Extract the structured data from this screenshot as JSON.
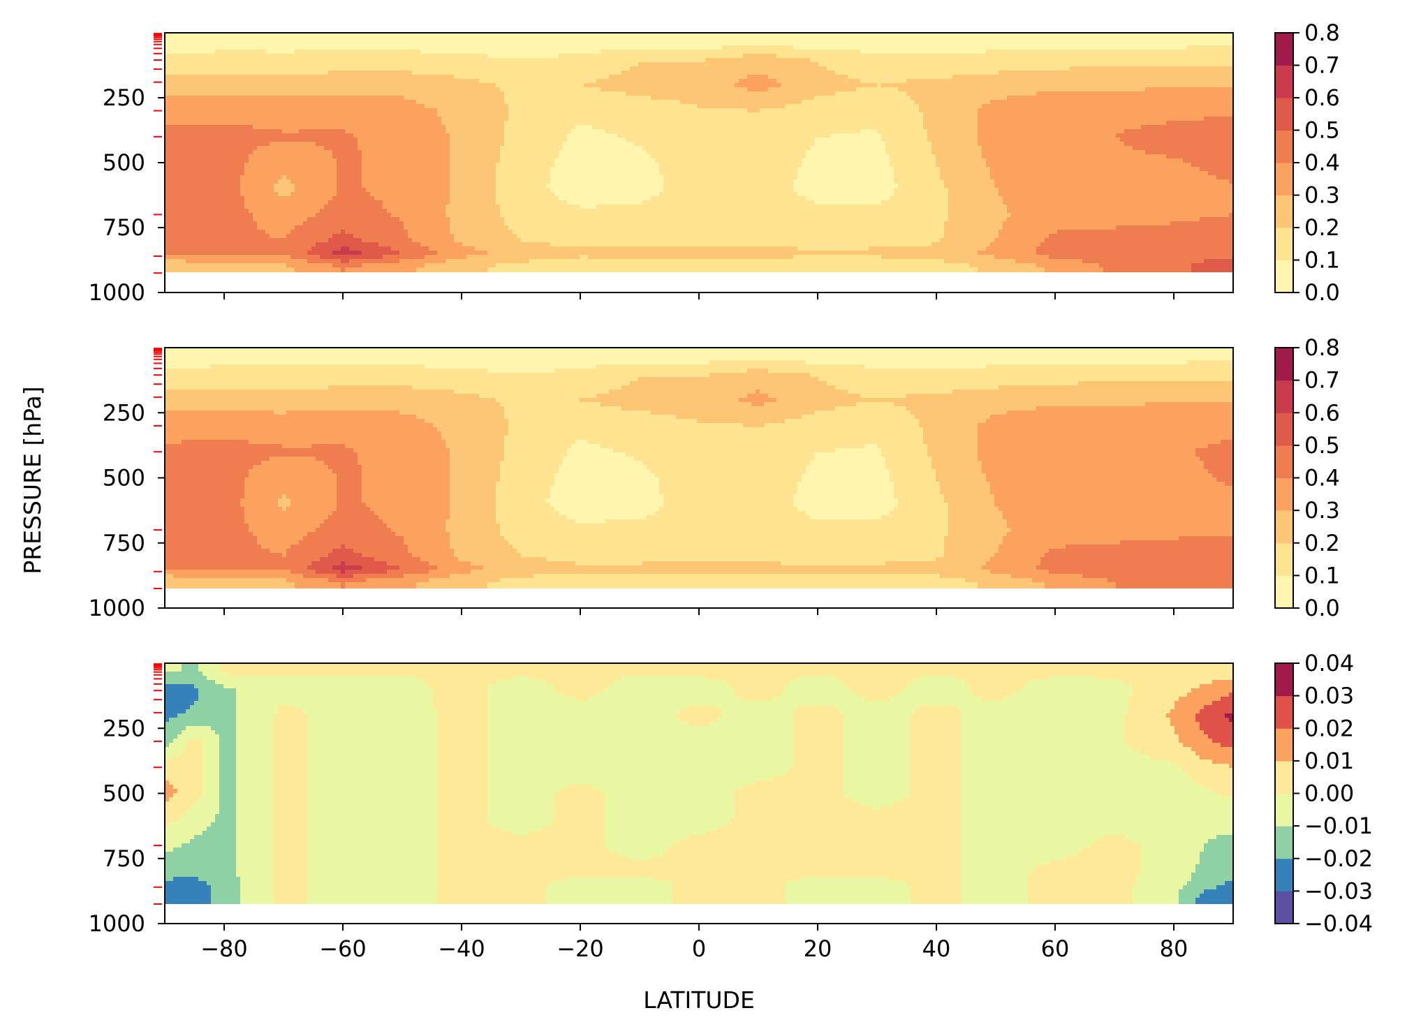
{
  "figure": {
    "ylabel": "PRESSURE [hPa]",
    "xlabel": "LATITUDE"
  },
  "chart_data": [
    {
      "type": "heatmap",
      "panel": "top",
      "x_range": [
        -90,
        90
      ],
      "y_range": [
        1000,
        0
      ],
      "y_inverted": true,
      "x_ticks": [
        -80,
        -60,
        -40,
        -20,
        0,
        20,
        40,
        60,
        80
      ],
      "x_tick_labels_shown": false,
      "y_ticks": [
        250,
        500,
        750,
        1000
      ],
      "y_tick_labels": [
        "250",
        "500",
        "750",
        "1000"
      ],
      "model_level_markers_hpa": [
        3,
        7,
        12,
        18,
        25,
        34,
        45,
        60,
        80,
        105,
        140,
        190,
        300,
        400,
        700,
        860,
        925
      ],
      "colorbar": {
        "levels": [
          0.0,
          0.1,
          0.2,
          0.3,
          0.4,
          0.5,
          0.6,
          0.7,
          0.8
        ],
        "tick_labels": [
          "0.0",
          "0.1",
          "0.2",
          "0.3",
          "0.4",
          "0.5",
          "0.6",
          "0.7",
          "0.8"
        ],
        "colors": [
          "#fff5ac",
          "#fee391",
          "#fdc674",
          "#fba35e",
          "#f07d4f",
          "#e05a4a",
          "#c93b4d",
          "#a11a4c"
        ]
      },
      "lat": [
        -90,
        -80,
        -70,
        -60,
        -50,
        -40,
        -30,
        -20,
        -10,
        0,
        10,
        20,
        30,
        40,
        50,
        60,
        70,
        80,
        90
      ],
      "plev": [
        30,
        100,
        200,
        300,
        400,
        500,
        600,
        700,
        800,
        850,
        900
      ],
      "values": [
        [
          0.04,
          0.06,
          0.05,
          0.05,
          0.05,
          0.04,
          0.04,
          0.03,
          0.03,
          0.03,
          0.03,
          0.03,
          0.04,
          0.05,
          0.06,
          0.06,
          0.06,
          0.06,
          0.07
        ],
        [
          0.12,
          0.13,
          0.13,
          0.14,
          0.14,
          0.12,
          0.1,
          0.12,
          0.19,
          0.19,
          0.25,
          0.19,
          0.12,
          0.11,
          0.13,
          0.15,
          0.16,
          0.16,
          0.17
        ],
        [
          0.25,
          0.24,
          0.24,
          0.26,
          0.26,
          0.23,
          0.18,
          0.2,
          0.24,
          0.25,
          0.34,
          0.24,
          0.2,
          0.23,
          0.26,
          0.28,
          0.28,
          0.29,
          0.29
        ],
        [
          0.36,
          0.37,
          0.36,
          0.37,
          0.34,
          0.27,
          0.18,
          0.12,
          0.15,
          0.19,
          0.2,
          0.15,
          0.12,
          0.23,
          0.33,
          0.36,
          0.37,
          0.37,
          0.38
        ],
        [
          0.43,
          0.43,
          0.41,
          0.41,
          0.37,
          0.28,
          0.17,
          0.08,
          0.11,
          0.16,
          0.17,
          0.1,
          0.09,
          0.22,
          0.34,
          0.38,
          0.4,
          0.44,
          0.47
        ],
        [
          0.46,
          0.44,
          0.33,
          0.41,
          0.38,
          0.28,
          0.15,
          0.06,
          0.08,
          0.15,
          0.15,
          0.08,
          0.07,
          0.2,
          0.32,
          0.38,
          0.38,
          0.39,
          0.43
        ],
        [
          0.45,
          0.45,
          0.27,
          0.41,
          0.38,
          0.28,
          0.14,
          0.05,
          0.07,
          0.14,
          0.14,
          0.07,
          0.06,
          0.18,
          0.3,
          0.37,
          0.37,
          0.37,
          0.39
        ],
        [
          0.44,
          0.44,
          0.35,
          0.44,
          0.39,
          0.27,
          0.16,
          0.12,
          0.12,
          0.14,
          0.14,
          0.12,
          0.12,
          0.18,
          0.28,
          0.36,
          0.37,
          0.38,
          0.4
        ],
        [
          0.42,
          0.43,
          0.4,
          0.54,
          0.42,
          0.28,
          0.2,
          0.17,
          0.16,
          0.17,
          0.17,
          0.16,
          0.17,
          0.19,
          0.3,
          0.42,
          0.43,
          0.44,
          0.46
        ],
        [
          0.4,
          0.42,
          0.4,
          0.66,
          0.5,
          0.34,
          0.25,
          0.22,
          0.23,
          0.23,
          0.23,
          0.22,
          0.22,
          0.23,
          0.33,
          0.44,
          0.46,
          0.47,
          0.48
        ],
        [
          0.2,
          0.26,
          0.28,
          0.4,
          0.32,
          0.22,
          0.17,
          0.14,
          0.13,
          0.13,
          0.13,
          0.13,
          0.14,
          0.16,
          0.22,
          0.32,
          0.42,
          0.48,
          0.55
        ]
      ]
    },
    {
      "type": "heatmap",
      "panel": "middle",
      "x_range": [
        -90,
        90
      ],
      "y_range": [
        1000,
        0
      ],
      "y_inverted": true,
      "x_ticks": [
        -80,
        -60,
        -40,
        -20,
        0,
        20,
        40,
        60,
        80
      ],
      "x_tick_labels_shown": false,
      "y_ticks": [
        250,
        500,
        750,
        1000
      ],
      "y_tick_labels": [
        "250",
        "500",
        "750",
        "1000"
      ],
      "model_level_markers_hpa": [
        3,
        7,
        12,
        18,
        25,
        34,
        45,
        60,
        80,
        105,
        140,
        190,
        300,
        400,
        700,
        860,
        925
      ],
      "colorbar": {
        "levels": [
          0.0,
          0.1,
          0.2,
          0.3,
          0.4,
          0.5,
          0.6,
          0.7,
          0.8
        ],
        "tick_labels": [
          "0.0",
          "0.1",
          "0.2",
          "0.3",
          "0.4",
          "0.5",
          "0.6",
          "0.7",
          "0.8"
        ],
        "colors": [
          "#fff5ac",
          "#fee391",
          "#fdc674",
          "#fba35e",
          "#f07d4f",
          "#e05a4a",
          "#c93b4d",
          "#a11a4c"
        ]
      },
      "lat": [
        -90,
        -80,
        -70,
        -60,
        -50,
        -40,
        -30,
        -20,
        -10,
        0,
        10,
        20,
        30,
        40,
        50,
        60,
        70,
        80,
        90
      ],
      "plev": [
        30,
        100,
        200,
        300,
        400,
        500,
        600,
        700,
        800,
        850,
        900
      ],
      "values": [
        [
          0.05,
          0.06,
          0.06,
          0.06,
          0.05,
          0.05,
          0.04,
          0.04,
          0.04,
          0.04,
          0.04,
          0.04,
          0.05,
          0.06,
          0.06,
          0.06,
          0.06,
          0.06,
          0.07
        ],
        [
          0.12,
          0.13,
          0.13,
          0.14,
          0.14,
          0.12,
          0.1,
          0.12,
          0.19,
          0.19,
          0.24,
          0.19,
          0.12,
          0.11,
          0.13,
          0.15,
          0.16,
          0.16,
          0.17
        ],
        [
          0.25,
          0.24,
          0.24,
          0.26,
          0.26,
          0.23,
          0.18,
          0.2,
          0.24,
          0.25,
          0.33,
          0.24,
          0.2,
          0.23,
          0.26,
          0.28,
          0.28,
          0.29,
          0.29
        ],
        [
          0.36,
          0.37,
          0.36,
          0.37,
          0.34,
          0.27,
          0.18,
          0.12,
          0.15,
          0.19,
          0.2,
          0.15,
          0.12,
          0.23,
          0.33,
          0.36,
          0.37,
          0.37,
          0.38
        ],
        [
          0.42,
          0.43,
          0.41,
          0.41,
          0.37,
          0.28,
          0.17,
          0.08,
          0.11,
          0.16,
          0.17,
          0.1,
          0.09,
          0.22,
          0.34,
          0.38,
          0.39,
          0.39,
          0.42
        ],
        [
          0.44,
          0.44,
          0.33,
          0.41,
          0.38,
          0.28,
          0.15,
          0.06,
          0.08,
          0.15,
          0.15,
          0.08,
          0.07,
          0.2,
          0.32,
          0.38,
          0.38,
          0.38,
          0.41
        ],
        [
          0.44,
          0.45,
          0.28,
          0.41,
          0.38,
          0.28,
          0.14,
          0.05,
          0.07,
          0.14,
          0.14,
          0.07,
          0.06,
          0.18,
          0.3,
          0.37,
          0.37,
          0.37,
          0.38
        ],
        [
          0.43,
          0.44,
          0.35,
          0.44,
          0.39,
          0.27,
          0.16,
          0.12,
          0.12,
          0.14,
          0.14,
          0.12,
          0.12,
          0.18,
          0.28,
          0.36,
          0.37,
          0.38,
          0.39
        ],
        [
          0.42,
          0.43,
          0.4,
          0.54,
          0.42,
          0.28,
          0.2,
          0.17,
          0.16,
          0.17,
          0.17,
          0.16,
          0.17,
          0.19,
          0.3,
          0.42,
          0.43,
          0.44,
          0.45
        ],
        [
          0.4,
          0.42,
          0.4,
          0.66,
          0.5,
          0.34,
          0.25,
          0.22,
          0.23,
          0.23,
          0.23,
          0.22,
          0.22,
          0.23,
          0.33,
          0.44,
          0.46,
          0.47,
          0.47
        ],
        [
          0.2,
          0.26,
          0.28,
          0.4,
          0.32,
          0.22,
          0.17,
          0.14,
          0.13,
          0.13,
          0.13,
          0.13,
          0.14,
          0.16,
          0.22,
          0.32,
          0.4,
          0.45,
          0.5
        ]
      ]
    },
    {
      "type": "heatmap",
      "panel": "bottom",
      "x_range": [
        -90,
        90
      ],
      "y_range": [
        1000,
        0
      ],
      "y_inverted": true,
      "x_ticks": [
        -80,
        -60,
        -40,
        -20,
        0,
        20,
        40,
        60,
        80
      ],
      "x_tick_labels": [
        "−80",
        "−60",
        "−40",
        "−20",
        "0",
        "20",
        "40",
        "60",
        "80"
      ],
      "y_ticks": [
        250,
        500,
        750,
        1000
      ],
      "y_tick_labels": [
        "250",
        "500",
        "750",
        "1000"
      ],
      "model_level_markers_hpa": [
        3,
        7,
        12,
        18,
        25,
        34,
        45,
        60,
        80,
        105,
        140,
        190,
        300,
        400,
        700,
        860,
        925
      ],
      "colorbar": {
        "levels": [
          -0.04,
          -0.03,
          -0.02,
          -0.01,
          0.0,
          0.01,
          0.02,
          0.03,
          0.04
        ],
        "tick_labels": [
          "−0.04",
          "−0.03",
          "−0.02",
          "−0.01",
          "0.00",
          "0.01",
          "0.02",
          "0.03",
          "0.04"
        ],
        "colors": [
          "#5e4fa2",
          "#3582ba",
          "#8ed1a4",
          "#e9f6a2",
          "#fee999",
          "#fba35e",
          "#e0514a",
          "#a11a4c"
        ]
      },
      "lat": [
        -90,
        -85,
        -80,
        -75,
        -70,
        -60,
        -50,
        -40,
        -30,
        -20,
        -10,
        0,
        10,
        20,
        30,
        40,
        50,
        60,
        70,
        80,
        85,
        90
      ],
      "plev": [
        30,
        100,
        200,
        300,
        400,
        500,
        600,
        700,
        800,
        850,
        900
      ],
      "values": [
        [
          -0.008,
          -0.012,
          0.002,
          0.002,
          0.001,
          0.002,
          0.001,
          0.001,
          0.002,
          0.001,
          0.001,
          0.002,
          0.001,
          0.001,
          0.002,
          0.001,
          0.001,
          0.002,
          0.002,
          0.003,
          0.004,
          0.005
        ],
        [
          -0.025,
          -0.022,
          -0.012,
          -0.006,
          -0.004,
          -0.004,
          -0.003,
          0.003,
          -0.004,
          0.003,
          -0.004,
          -0.004,
          0.003,
          -0.004,
          0.003,
          -0.004,
          0.003,
          -0.004,
          -0.003,
          0.006,
          0.012,
          0.018
        ],
        [
          -0.022,
          -0.018,
          -0.012,
          -0.006,
          0.003,
          -0.004,
          -0.004,
          0.003,
          -0.004,
          -0.004,
          -0.004,
          0.003,
          -0.004,
          0.003,
          -0.004,
          0.003,
          -0.004,
          -0.004,
          -0.003,
          0.012,
          0.024,
          0.032
        ],
        [
          -0.014,
          0.004,
          -0.012,
          -0.006,
          0.003,
          -0.004,
          -0.004,
          0.003,
          -0.004,
          -0.004,
          -0.004,
          -0.004,
          -0.004,
          0.003,
          -0.004,
          0.003,
          -0.004,
          -0.004,
          -0.002,
          0.008,
          0.018,
          0.024
        ],
        [
          0.006,
          0.006,
          -0.012,
          -0.006,
          0.003,
          -0.004,
          -0.004,
          0.003,
          -0.004,
          -0.004,
          -0.004,
          -0.004,
          -0.004,
          0.003,
          -0.004,
          0.003,
          -0.004,
          -0.004,
          -0.003,
          -0.002,
          0.006,
          0.01
        ],
        [
          0.014,
          0.004,
          -0.012,
          -0.006,
          0.003,
          -0.004,
          -0.004,
          0.003,
          -0.004,
          0.003,
          -0.004,
          -0.004,
          0.003,
          0.003,
          -0.004,
          0.003,
          -0.004,
          -0.004,
          -0.003,
          -0.004,
          -0.002,
          0.002
        ],
        [
          0.004,
          -0.006,
          -0.012,
          -0.006,
          0.003,
          -0.004,
          -0.004,
          0.003,
          -0.004,
          0.003,
          -0.004,
          -0.004,
          0.003,
          0.003,
          0.003,
          0.003,
          -0.004,
          -0.004,
          -0.004,
          -0.004,
          -0.006,
          -0.006
        ],
        [
          -0.008,
          -0.012,
          -0.013,
          -0.006,
          0.003,
          -0.004,
          -0.004,
          0.003,
          0.003,
          0.003,
          -0.004,
          0.003,
          0.003,
          0.003,
          0.003,
          0.003,
          -0.004,
          -0.004,
          0.003,
          -0.004,
          -0.01,
          -0.014
        ],
        [
          -0.016,
          -0.016,
          -0.013,
          -0.006,
          0.003,
          -0.004,
          -0.004,
          0.003,
          0.003,
          0.003,
          0.003,
          0.003,
          0.003,
          0.003,
          0.003,
          0.003,
          -0.004,
          0.003,
          0.003,
          -0.004,
          -0.012,
          -0.016
        ],
        [
          -0.022,
          -0.025,
          -0.014,
          -0.006,
          0.003,
          -0.004,
          -0.004,
          0.003,
          0.003,
          -0.004,
          -0.004,
          0.003,
          0.003,
          -0.004,
          -0.004,
          0.003,
          -0.004,
          0.003,
          0.003,
          -0.006,
          -0.016,
          -0.022
        ],
        [
          -0.026,
          -0.026,
          -0.016,
          -0.006,
          0.003,
          -0.004,
          -0.004,
          0.003,
          0.003,
          -0.004,
          -0.004,
          0.003,
          0.003,
          -0.004,
          -0.004,
          0.003,
          -0.004,
          0.003,
          0.003,
          -0.008,
          -0.024,
          -0.03
        ]
      ]
    }
  ]
}
